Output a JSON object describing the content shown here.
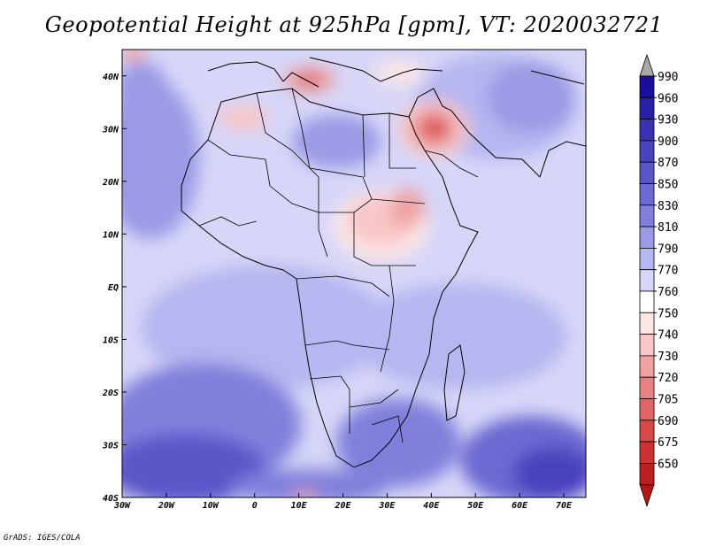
{
  "title": "Geopotential Height at 925hPa [gpm], VT: 2020032721",
  "footer": "GrADS: IGES/COLA",
  "map": {
    "lon_range": [
      -30,
      75
    ],
    "lat_range": [
      -40,
      45
    ],
    "x_ticks": [
      {
        "value": -30,
        "label": "30W"
      },
      {
        "value": -20,
        "label": "20W"
      },
      {
        "value": -10,
        "label": "10W"
      },
      {
        "value": 0,
        "label": "0"
      },
      {
        "value": 10,
        "label": "10E"
      },
      {
        "value": 20,
        "label": "20E"
      },
      {
        "value": 30,
        "label": "30E"
      },
      {
        "value": 40,
        "label": "40E"
      },
      {
        "value": 50,
        "label": "50E"
      },
      {
        "value": 60,
        "label": "60E"
      },
      {
        "value": 70,
        "label": "70E"
      }
    ],
    "y_ticks": [
      {
        "value": 40,
        "label": "40N"
      },
      {
        "value": 30,
        "label": "30N"
      },
      {
        "value": 20,
        "label": "20N"
      },
      {
        "value": 10,
        "label": "10N"
      },
      {
        "value": 0,
        "label": "EQ"
      },
      {
        "value": -10,
        "label": "10S"
      },
      {
        "value": -20,
        "label": "20S"
      },
      {
        "value": -30,
        "label": "30S"
      },
      {
        "value": -40,
        "label": "40S"
      }
    ]
  },
  "colorbar": {
    "levels": [
      {
        "label": "990",
        "color": "#1a0e9a"
      },
      {
        "label": "960",
        "color": "#2a1fa8"
      },
      {
        "label": "930",
        "color": "#3a30b4"
      },
      {
        "label": "900",
        "color": "#4a43be"
      },
      {
        "label": "870",
        "color": "#5a56c8"
      },
      {
        "label": "850",
        "color": "#6c69d2"
      },
      {
        "label": "830",
        "color": "#8080dc"
      },
      {
        "label": "810",
        "color": "#9a9ae6"
      },
      {
        "label": "790",
        "color": "#b6b6f0"
      },
      {
        "label": "770",
        "color": "#d6d6f8"
      },
      {
        "label": "760",
        "color": "#ffffff"
      },
      {
        "label": "750",
        "color": "#fde6e6"
      },
      {
        "label": "740",
        "color": "#f8c6c6"
      },
      {
        "label": "730",
        "color": "#f0a2a2"
      },
      {
        "label": "720",
        "color": "#e88282"
      },
      {
        "label": "705",
        "color": "#e06464"
      },
      {
        "label": "690",
        "color": "#d84848"
      },
      {
        "label": "675",
        "color": "#cc3232"
      },
      {
        "label": "650",
        "color": "#bb2020"
      }
    ],
    "over_color": "#a8a8a8",
    "under_color": "#b01818"
  }
}
